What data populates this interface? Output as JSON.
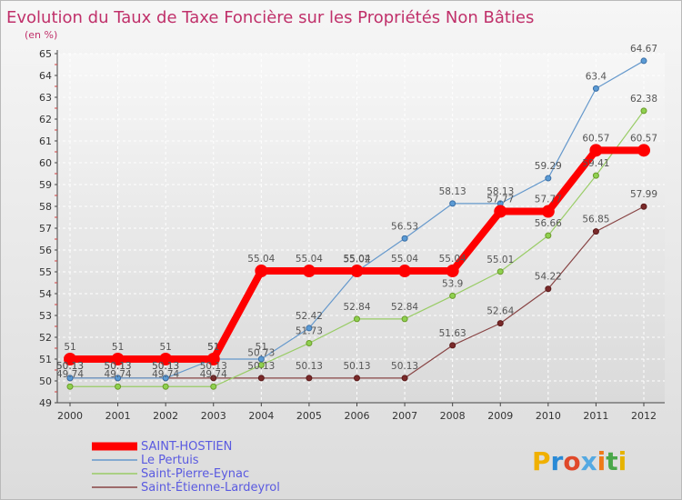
{
  "chart_data": {
    "type": "line",
    "title": "Evolution du Taux de Taxe Foncière sur les Propriétés Non Bâties",
    "unit_label": "(en %)",
    "x": [
      "2000",
      "2001",
      "2002",
      "2003",
      "2004",
      "2005",
      "2006",
      "2007",
      "2008",
      "2009",
      "2010",
      "2011",
      "2012"
    ],
    "ylim": [
      49,
      65
    ],
    "y_ticks": [
      "49",
      "50",
      "51",
      "52",
      "53",
      "54",
      "55",
      "56",
      "57",
      "58",
      "59",
      "60",
      "61",
      "62",
      "63",
      "64",
      "65"
    ],
    "grid": true,
    "legend_position": "bottom-left",
    "series": [
      {
        "name": "SAINT-HOSTIEN",
        "color": "#ff0000",
        "values": [
          51,
          51,
          51,
          51,
          55.04,
          55.04,
          55.04,
          55.04,
          55.04,
          57.77,
          57.77,
          60.57,
          60.57
        ],
        "labels": [
          "51",
          "51",
          "51",
          "51",
          "55.04",
          "55.04",
          "55.04",
          "55.04",
          "55.04",
          "57.77",
          "57.77",
          "60.57",
          "60.57"
        ]
      },
      {
        "name": "Le Pertuis",
        "color": "#6699cc",
        "values": [
          50.13,
          50.13,
          50.13,
          51,
          51,
          52.42,
          55.02,
          56.53,
          58.13,
          58.13,
          59.29,
          63.4,
          64.67
        ],
        "labels": [
          "50.13",
          "50.13",
          "50.13",
          "51",
          "51",
          "52.42",
          "55.02",
          "56.53",
          "58.13",
          "58.13",
          "59.29",
          "63.4",
          "64.67"
        ]
      },
      {
        "name": "Saint-Pierre-Eynac",
        "color": "#99cc66",
        "values": [
          49.74,
          49.74,
          49.74,
          49.74,
          50.73,
          51.73,
          52.84,
          52.84,
          53.9,
          55.01,
          56.66,
          59.41,
          62.38
        ],
        "labels": [
          "49.74",
          "49.74",
          "49.74",
          "49.74",
          "50.73",
          "51.73",
          "52.84",
          "52.84",
          "53.9",
          "55.01",
          "56.66",
          "59.41",
          "62.38"
        ]
      },
      {
        "name": "Saint-Étienne-Lardeyrol",
        "color": "#884444",
        "values": [
          50.13,
          50.13,
          50.13,
          50.13,
          50.13,
          50.13,
          50.13,
          50.13,
          51.63,
          52.64,
          54.22,
          56.85,
          57.99
        ],
        "labels": [
          "50.13",
          "50.13",
          "50.13",
          "50.13",
          "50.13",
          "50.13",
          "50.13",
          "50.13",
          "51.63",
          "52.64",
          "54.22",
          "56.85",
          "57.99"
        ]
      }
    ]
  },
  "logo": {
    "letters": [
      "P",
      "r",
      "o",
      "x",
      "i",
      "t",
      "i"
    ],
    "colors": [
      "#f0b000",
      "#2a8ad6",
      "#e0492a",
      "#54a9e2",
      "#ef7a18",
      "#4aa74a",
      "#e6b300"
    ]
  }
}
